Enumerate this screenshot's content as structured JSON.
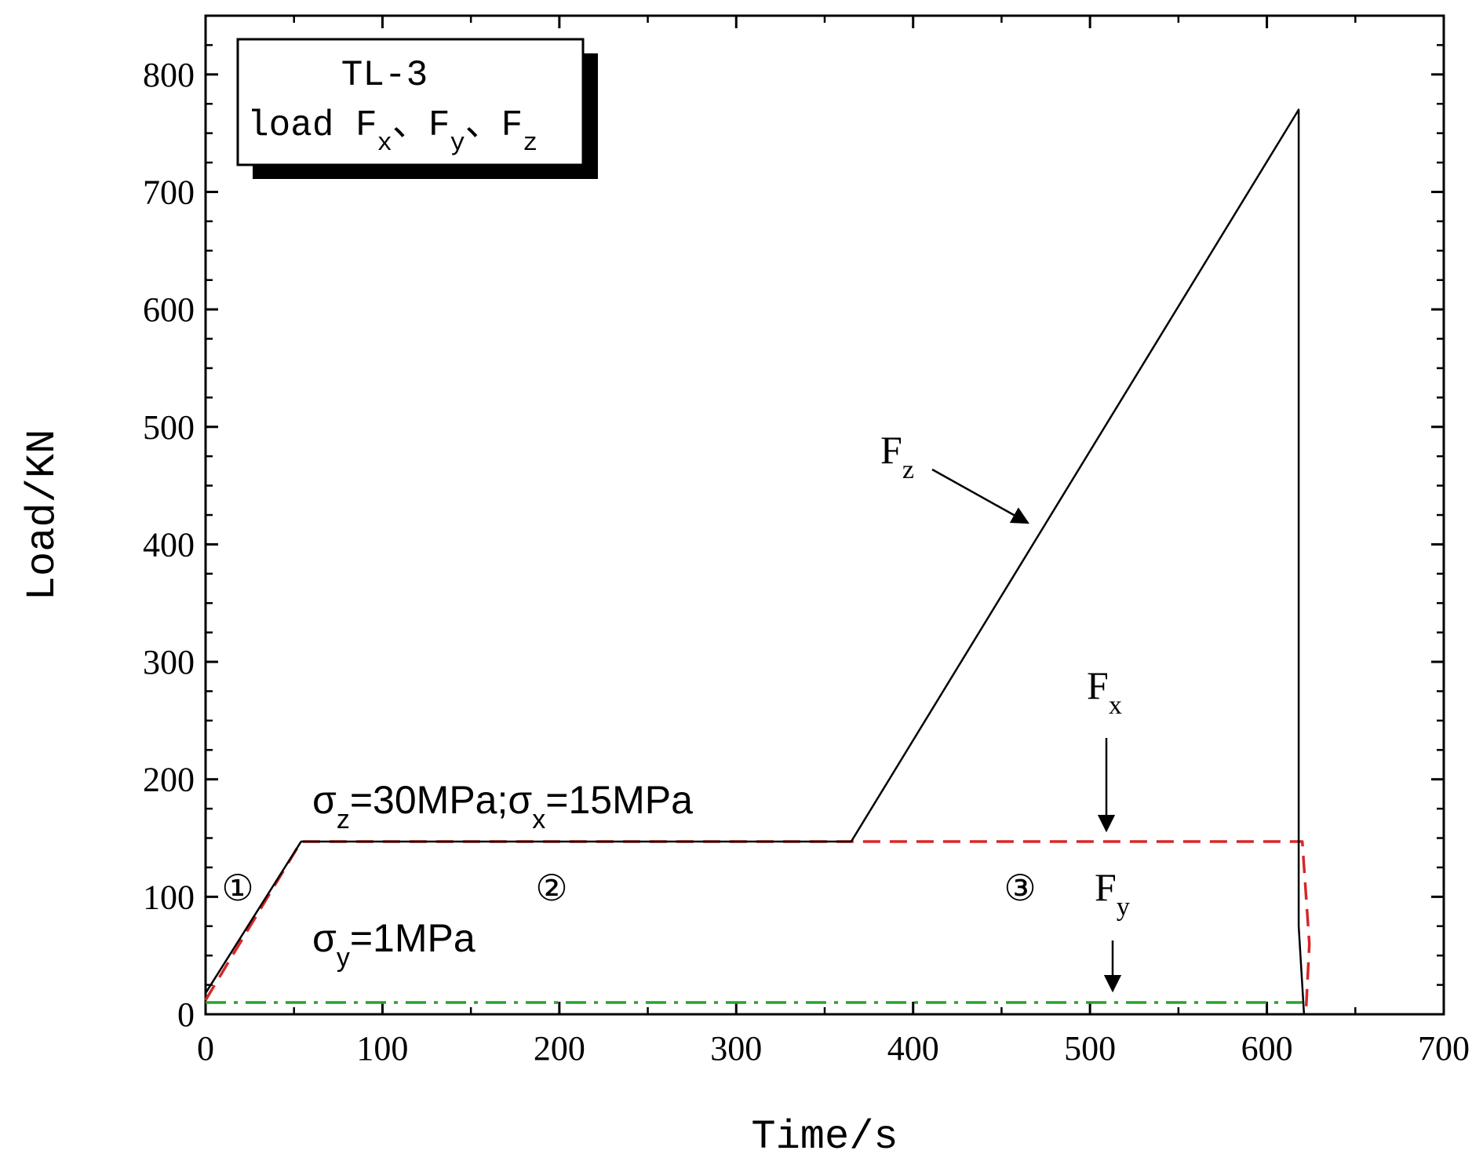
{
  "chart_data": {
    "type": "line",
    "xlabel": "Time/s",
    "ylabel": "Load/KN",
    "xlim": [
      0,
      700
    ],
    "ylim": [
      0,
      850
    ],
    "x_ticks": [
      "0",
      "100",
      "200",
      "300",
      "400",
      "500",
      "600",
      "700"
    ],
    "y_ticks": [
      "0",
      "100",
      "200",
      "300",
      "400",
      "500",
      "600",
      "700",
      "800"
    ],
    "grid": false,
    "legend_box": {
      "position": "top-left",
      "line1": "TL-3",
      "line2_prefix": "load ",
      "items": [
        {
          "base": "F",
          "sub": "x",
          "sep": "、"
        },
        {
          "base": "F",
          "sub": "y",
          "sep": "、"
        },
        {
          "base": "F",
          "sub": "z",
          "sep": ""
        }
      ]
    },
    "series": [
      {
        "name": "Fz",
        "color": "#000000",
        "style": "solid",
        "points": [
          [
            0,
            18
          ],
          [
            54,
            147
          ],
          [
            365,
            147
          ],
          [
            618,
            770
          ],
          [
            618,
            75
          ],
          [
            621,
            0
          ]
        ]
      },
      {
        "name": "Fx",
        "color": "#d62728",
        "style": "dashed",
        "points": [
          [
            0,
            12
          ],
          [
            54,
            147
          ],
          [
            620,
            147
          ],
          [
            624,
            60
          ],
          [
            622,
            0
          ]
        ]
      },
      {
        "name": "Fy",
        "color": "#2ca02c",
        "style": "dash-dot",
        "points": [
          [
            0,
            10
          ],
          [
            620,
            10
          ]
        ]
      }
    ],
    "annotations": {
      "sigma_zx": {
        "a_base": "σ",
        "a_sub": "z",
        "a_val": "=30MPa",
        "sep": ";",
        "b_base": "σ",
        "b_sub": "x",
        "b_val": "=15MPa"
      },
      "sigma_y": {
        "base": "σ",
        "sub": "y",
        "val": "=1MPa"
      },
      "label_fz": {
        "base": "F",
        "sub": "z"
      },
      "label_fx": {
        "base": "F",
        "sub": "x"
      },
      "label_fy": {
        "base": "F",
        "sub": "y"
      },
      "stages": [
        "①",
        "②",
        "③"
      ]
    }
  }
}
